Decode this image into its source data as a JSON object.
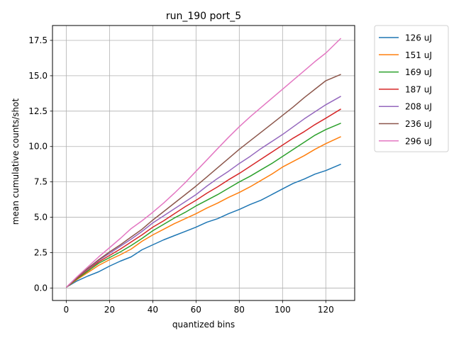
{
  "chart_data": {
    "type": "line",
    "title": "run_190 port_5",
    "xlabel": "quantized bins",
    "ylabel": "mean cumulative counts/shot",
    "xlim": [
      -6.35,
      133.35
    ],
    "ylim": [
      -0.88,
      18.55
    ],
    "xticks": [
      0,
      20,
      40,
      60,
      80,
      100,
      120
    ],
    "xtick_labels": [
      "0",
      "20",
      "40",
      "60",
      "80",
      "100",
      "120"
    ],
    "yticks": [
      0,
      2.5,
      5,
      7.5,
      10,
      12.5,
      15,
      17.5
    ],
    "ytick_labels": [
      "0.0",
      "2.5",
      "5.0",
      "7.5",
      "10.0",
      "12.5",
      "15.0",
      "17.5"
    ],
    "grid": true,
    "legend_position": "outside-top-right",
    "x": [
      0,
      5,
      10,
      15,
      20,
      25,
      30,
      35,
      40,
      45,
      50,
      55,
      60,
      65,
      70,
      75,
      80,
      85,
      90,
      95,
      100,
      105,
      110,
      115,
      120,
      127
    ],
    "series": [
      {
        "name": "126 uJ",
        "color": "#1f77b4",
        "values": [
          0.05,
          0.5,
          0.85,
          1.15,
          1.55,
          1.9,
          2.2,
          2.7,
          3.05,
          3.4,
          3.7,
          4.0,
          4.3,
          4.65,
          4.9,
          5.25,
          5.55,
          5.9,
          6.2,
          6.6,
          7.0,
          7.4,
          7.7,
          8.05,
          8.3,
          8.75
        ]
      },
      {
        "name": "151 uJ",
        "color": "#ff7f0e",
        "values": [
          0.05,
          0.6,
          1.1,
          1.6,
          2.0,
          2.35,
          2.75,
          3.3,
          3.75,
          4.15,
          4.55,
          4.9,
          5.25,
          5.65,
          6.0,
          6.4,
          6.75,
          7.15,
          7.6,
          8.05,
          8.55,
          8.95,
          9.35,
          9.8,
          10.2,
          10.7
        ]
      },
      {
        "name": "169 uJ",
        "color": "#2ca02c",
        "values": [
          0.05,
          0.65,
          1.2,
          1.75,
          2.15,
          2.55,
          3.0,
          3.5,
          4.05,
          4.5,
          4.95,
          5.35,
          5.8,
          6.2,
          6.6,
          7.05,
          7.5,
          7.9,
          8.35,
          8.8,
          9.3,
          9.8,
          10.3,
          10.8,
          11.2,
          11.65
        ]
      },
      {
        "name": "187 uJ",
        "color": "#d62728",
        "values": [
          0.05,
          0.7,
          1.3,
          1.85,
          2.3,
          2.75,
          3.25,
          3.75,
          4.3,
          4.75,
          5.25,
          5.75,
          6.2,
          6.7,
          7.15,
          7.65,
          8.1,
          8.6,
          9.1,
          9.6,
          10.1,
          10.6,
          11.05,
          11.55,
          12.0,
          12.65
        ]
      },
      {
        "name": "208 uJ",
        "color": "#9467bd",
        "values": [
          0.05,
          0.75,
          1.35,
          1.95,
          2.45,
          2.95,
          3.45,
          4.0,
          4.6,
          5.1,
          5.6,
          6.1,
          6.6,
          7.2,
          7.75,
          8.25,
          8.8,
          9.3,
          9.85,
          10.35,
          10.85,
          11.4,
          11.95,
          12.45,
          12.95,
          13.55
        ]
      },
      {
        "name": "236 uJ",
        "color": "#8c564b",
        "values": [
          0.05,
          0.75,
          1.4,
          2.0,
          2.55,
          3.05,
          3.6,
          4.15,
          4.8,
          5.4,
          6.0,
          6.6,
          7.2,
          7.85,
          8.5,
          9.15,
          9.8,
          10.4,
          11.0,
          11.6,
          12.2,
          12.8,
          13.45,
          14.05,
          14.65,
          15.1
        ]
      },
      {
        "name": "296 uJ",
        "color": "#e377c2",
        "values": [
          0.05,
          0.8,
          1.5,
          2.2,
          2.85,
          3.5,
          4.2,
          4.75,
          5.35,
          6.0,
          6.7,
          7.45,
          8.25,
          9.05,
          9.85,
          10.65,
          11.4,
          12.1,
          12.75,
          13.4,
          14.05,
          14.7,
          15.35,
          16.0,
          16.6,
          17.65
        ]
      }
    ]
  }
}
